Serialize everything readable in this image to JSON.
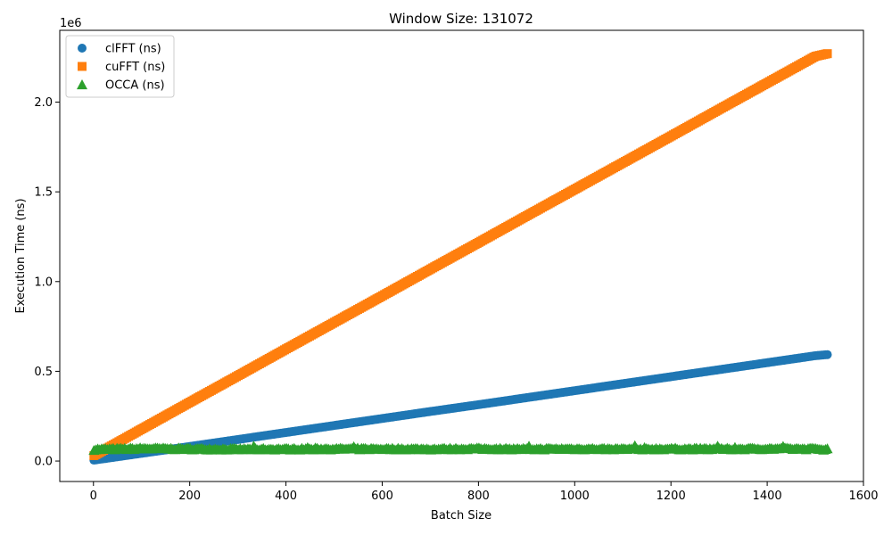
{
  "chart_data": {
    "type": "scatter",
    "title": "Window Size: 131072",
    "xlabel": "Batch Size",
    "ylabel": "Execution Time (ns)",
    "y_offset_label": "1e6",
    "xlim": [
      -70,
      1600
    ],
    "ylim": [
      -0.114,
      2.4
    ],
    "xticks": [
      0,
      200,
      400,
      600,
      800,
      1000,
      1200,
      1400,
      1600
    ],
    "xtick_labels": [
      "0",
      "200",
      "400",
      "600",
      "800",
      "1000",
      "1200",
      "1400",
      "1600"
    ],
    "yticks": [
      0.0,
      0.5,
      1.0,
      1.5,
      2.0
    ],
    "ytick_labels": [
      "0.0",
      "0.5",
      "1.0",
      "1.5",
      "2.0"
    ],
    "grid": false,
    "legend_position": "top-left",
    "x_range": [
      1,
      1525
    ],
    "series": [
      {
        "name": "clFFT (ns)",
        "marker": "circle",
        "color": "#1f77b4",
        "x": [
          1,
          100,
          200,
          300,
          400,
          500,
          600,
          700,
          800,
          900,
          1000,
          1100,
          1200,
          1300,
          1400,
          1500,
          1525
        ],
        "y": [
          0.005,
          0.043,
          0.081,
          0.12,
          0.159,
          0.198,
          0.237,
          0.276,
          0.314,
          0.353,
          0.392,
          0.431,
          0.47,
          0.509,
          0.548,
          0.587,
          0.593
        ]
      },
      {
        "name": "cuFFT (ns)",
        "marker": "square",
        "color": "#ff7f0e",
        "x": [
          1,
          100,
          200,
          300,
          400,
          500,
          600,
          700,
          800,
          900,
          1000,
          1100,
          1200,
          1300,
          1400,
          1500,
          1525
        ],
        "y": [
          0.03,
          0.178,
          0.327,
          0.475,
          0.624,
          0.772,
          0.92,
          1.069,
          1.217,
          1.366,
          1.514,
          1.662,
          1.81,
          1.959,
          2.107,
          2.255,
          2.27
        ]
      },
      {
        "name": "OCCA (ns)",
        "marker": "triangle",
        "color": "#2ca02c",
        "x": [
          1,
          100,
          200,
          300,
          400,
          500,
          600,
          700,
          800,
          900,
          1000,
          1100,
          1200,
          1300,
          1400,
          1500,
          1525
        ],
        "y": [
          0.065,
          0.07,
          0.068,
          0.066,
          0.067,
          0.068,
          0.068,
          0.067,
          0.069,
          0.067,
          0.068,
          0.067,
          0.068,
          0.067,
          0.069,
          0.068,
          0.066
        ]
      }
    ]
  }
}
